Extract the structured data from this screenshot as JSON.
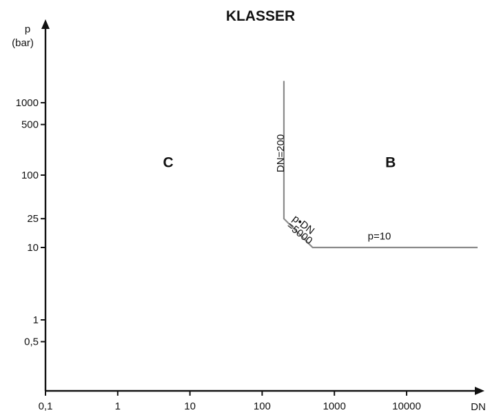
{
  "chart_data": {
    "type": "line",
    "title": "KLASSER",
    "xlabel": "DN",
    "ylabel": "p",
    "ylabel_unit": "(bar)",
    "x_scale": "log",
    "y_scale": "log",
    "xlim": [
      0.1,
      100000
    ],
    "ylim": [
      0.1,
      2000
    ],
    "x_ticks": [
      {
        "value": 0.1,
        "label": "0,1"
      },
      {
        "value": 1,
        "label": "1"
      },
      {
        "value": 10,
        "label": "10"
      },
      {
        "value": 100,
        "label": "100"
      },
      {
        "value": 1000,
        "label": "1000"
      },
      {
        "value": 10000,
        "label": "10000"
      }
    ],
    "y_ticks": [
      {
        "value": 0.5,
        "label": "0,5"
      },
      {
        "value": 1,
        "label": "1"
      },
      {
        "value": 10,
        "label": "10"
      },
      {
        "value": 25,
        "label": "25"
      },
      {
        "value": 100,
        "label": "100"
      },
      {
        "value": 500,
        "label": "500"
      },
      {
        "value": 1000,
        "label": "1000"
      }
    ],
    "series": [
      {
        "color": "#8a8a8a",
        "points": [
          [
            200,
            2000
          ],
          [
            200,
            25
          ],
          [
            500,
            10
          ],
          [
            100000,
            10
          ]
        ]
      }
    ],
    "annotations": [
      {
        "text": "DN=200",
        "x": 200,
        "y": 200,
        "rotation": -90
      },
      {
        "text": "p•DN",
        "x": 350,
        "y": 19,
        "rotation": 38
      },
      {
        "text": "=5000",
        "x": 310,
        "y": 14.5,
        "rotation": 38
      },
      {
        "text": "p=10",
        "x": 4200,
        "y": 12.8,
        "rotation": 0
      }
    ],
    "regions": [
      {
        "label": "C",
        "x": 5,
        "y": 150
      },
      {
        "label": "B",
        "x": 6000,
        "y": 150
      }
    ],
    "grid": false,
    "legend": "none"
  }
}
